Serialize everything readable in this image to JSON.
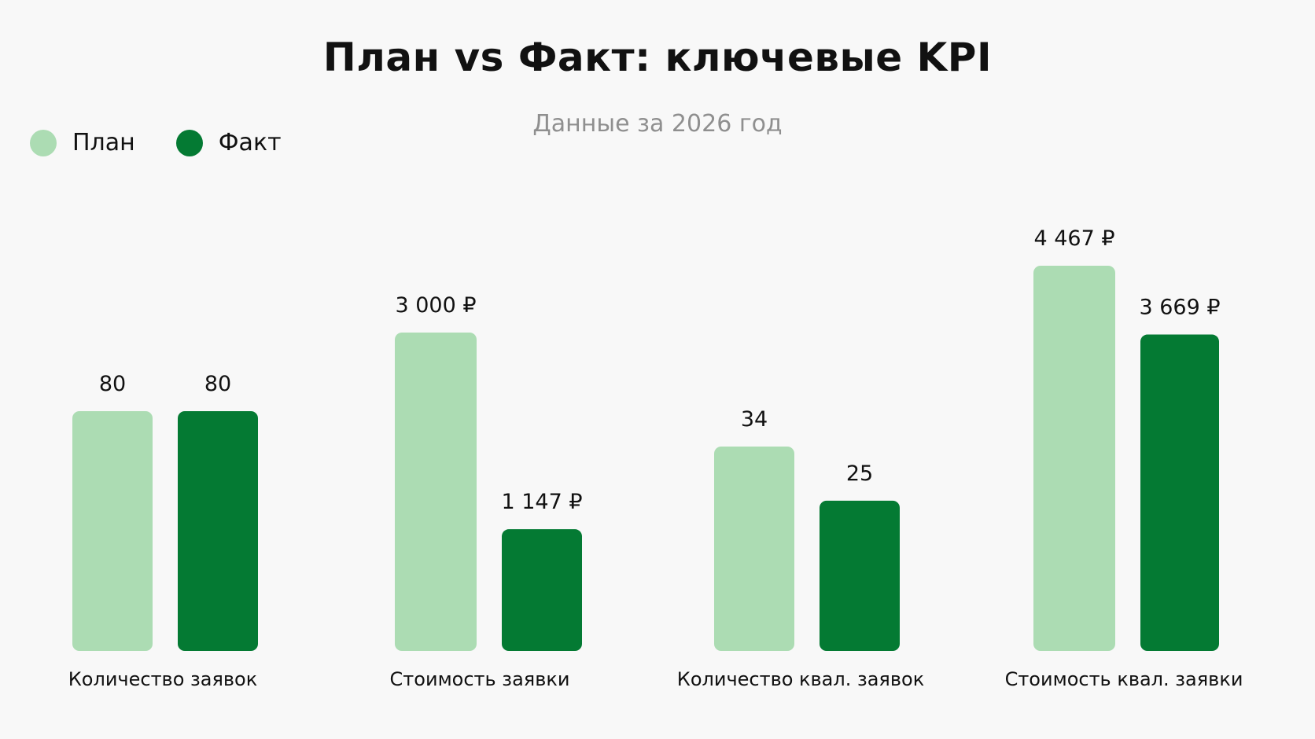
{
  "chart_data": {
    "type": "bar",
    "title": "План vs Факт: ключевые KPI",
    "subtitle": "Данные за 2026 год",
    "legend_position": "top-left",
    "grid": false,
    "categories": [
      "Количество заявок",
      "Стоимость заявки",
      "Количество квал. заявок",
      "Стоимость квал. заявки"
    ],
    "series": [
      {
        "name": "План",
        "color": "#acdcb3",
        "values": [
          80,
          3000,
          34,
          4467
        ],
        "labels": [
          "80",
          "3 000 ₽",
          "34",
          "4 467 ₽"
        ]
      },
      {
        "name": "Факт",
        "color": "#047a33",
        "values": [
          80,
          1147,
          25,
          3669
        ],
        "labels": [
          "80",
          "1 147 ₽",
          "25",
          "3 669 ₽"
        ]
      }
    ]
  }
}
